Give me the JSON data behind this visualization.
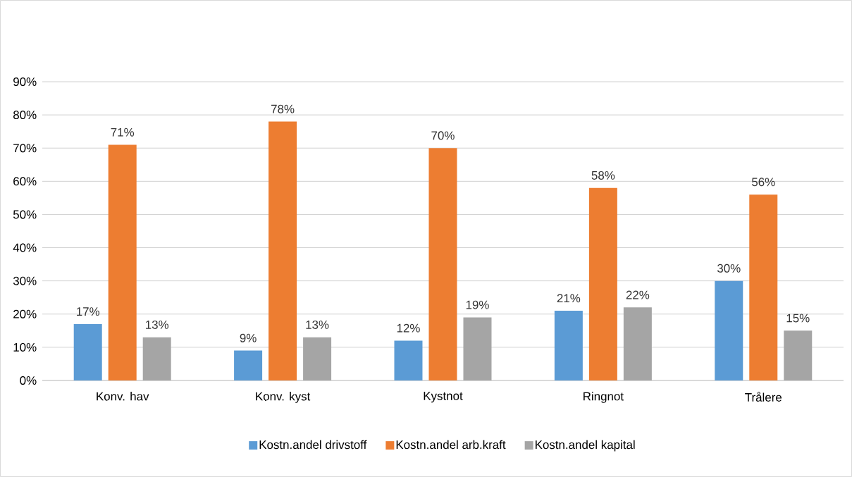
{
  "chart_data": {
    "type": "bar",
    "categories": [
      "Konv. hav",
      "Konv. kyst",
      "Kystnot",
      "Ringnot",
      "Trålere"
    ],
    "series": [
      {
        "name": "Kostn.andel drivstoff",
        "color": "#5b9bd5",
        "values": [
          17,
          9,
          12,
          21,
          30
        ],
        "value_labels": [
          "17%",
          "9%",
          "12%",
          "21%",
          "30%"
        ]
      },
      {
        "name": "Kostn.andel arb.kraft",
        "color": "#ed7d31",
        "values": [
          71,
          78,
          70,
          58,
          56
        ],
        "value_labels": [
          "71%",
          "78%",
          "70%",
          "58%",
          "56%"
        ]
      },
      {
        "name": "Kostn.andel kapital",
        "color": "#a5a5a5",
        "values": [
          13,
          13,
          19,
          22,
          15
        ],
        "value_labels": [
          "13%",
          "13%",
          "19%",
          "22%",
          "15%"
        ]
      }
    ],
    "ylim": [
      0,
      90
    ],
    "yticks": [
      {
        "value": 0,
        "label": "0%"
      },
      {
        "value": 10,
        "label": "10%"
      },
      {
        "value": 20,
        "label": "20%"
      },
      {
        "value": 30,
        "label": "30%"
      },
      {
        "value": 40,
        "label": "40%"
      },
      {
        "value": 50,
        "label": "50%"
      },
      {
        "value": 60,
        "label": "60%"
      },
      {
        "value": 70,
        "label": "70%"
      },
      {
        "value": 80,
        "label": "80%"
      },
      {
        "value": 90,
        "label": "90%"
      }
    ],
    "grid": "y",
    "legend": "bottom"
  }
}
